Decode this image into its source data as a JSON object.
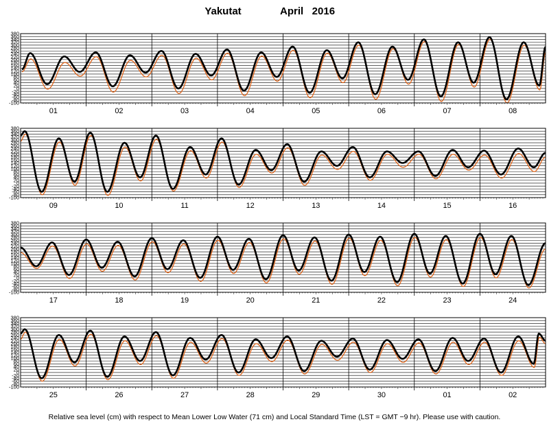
{
  "chart_data": {
    "type": "line",
    "title": {
      "station": "Yakutat",
      "month_year": "April   2016"
    },
    "ylim": [
      -100,
      380
    ],
    "y_ticks": [
      380,
      360,
      340,
      320,
      300,
      280,
      260,
      240,
      220,
      200,
      180,
      160,
      140,
      120,
      100,
      80,
      60,
      40,
      20,
      0,
      -20,
      -40,
      -60,
      -80,
      -100
    ],
    "grid": true,
    "series": [
      {
        "key": "black",
        "color": "#000000"
      },
      {
        "key": "orange",
        "color": "#e0661c"
      }
    ],
    "panels": [
      {
        "day_labels": [
          "01",
          "02",
          "03",
          "04",
          "05",
          "06",
          "07",
          "08"
        ],
        "high_low_black": [
          [
            0.5,
            132
          ],
          [
            3.5,
            245
          ],
          [
            9.7,
            30
          ],
          [
            16.0,
            222
          ],
          [
            21.6,
            115
          ],
          [
            27.5,
            250
          ],
          [
            33.7,
            15
          ],
          [
            40.0,
            230
          ],
          [
            45.7,
            110
          ],
          [
            51.5,
            260
          ],
          [
            57.7,
            0
          ],
          [
            64.0,
            240
          ],
          [
            69.7,
            90
          ],
          [
            75.5,
            270
          ],
          [
            81.7,
            -15
          ],
          [
            88.0,
            250
          ],
          [
            93.7,
            80
          ],
          [
            99.5,
            290
          ],
          [
            105.7,
            -30
          ],
          [
            112.0,
            265
          ],
          [
            117.7,
            70
          ],
          [
            123.5,
            320
          ],
          [
            129.7,
            -40
          ],
          [
            136.0,
            290
          ],
          [
            141.7,
            60
          ],
          [
            147.5,
            340
          ],
          [
            153.7,
            -55
          ],
          [
            160.0,
            320
          ],
          [
            165.7,
            40
          ],
          [
            171.5,
            355
          ],
          [
            177.7,
            -75
          ],
          [
            184.0,
            320
          ],
          [
            189.7,
            20
          ],
          [
            192.0,
            290
          ]
        ],
        "high_low_orange": [
          [
            0.5,
            115
          ],
          [
            3.7,
            205
          ],
          [
            9.9,
            -5
          ],
          [
            16.2,
            180
          ],
          [
            21.8,
            85
          ],
          [
            27.7,
            220
          ],
          [
            33.9,
            -25
          ],
          [
            40.2,
            195
          ],
          [
            45.9,
            80
          ],
          [
            51.7,
            230
          ],
          [
            57.9,
            -35
          ],
          [
            64.2,
            210
          ],
          [
            69.9,
            60
          ],
          [
            75.7,
            245
          ],
          [
            81.9,
            -50
          ],
          [
            88.2,
            225
          ],
          [
            93.9,
            50
          ],
          [
            99.7,
            265
          ],
          [
            105.9,
            -65
          ],
          [
            112.2,
            245
          ],
          [
            117.9,
            40
          ],
          [
            123.7,
            300
          ],
          [
            129.9,
            -75
          ],
          [
            136.2,
            275
          ],
          [
            141.9,
            30
          ],
          [
            147.7,
            325
          ],
          [
            153.9,
            -90
          ],
          [
            160.2,
            305
          ],
          [
            165.9,
            10
          ],
          [
            171.7,
            340
          ],
          [
            177.9,
            -100
          ],
          [
            184.2,
            300
          ],
          [
            189.9,
            -10
          ],
          [
            192.0,
            250
          ]
        ]
      },
      {
        "day_labels": [
          "09",
          "10",
          "11",
          "12",
          "13",
          "14",
          "15",
          "16"
        ],
        "high_low_black": [
          [
            0.0,
            330
          ],
          [
            1.5,
            360
          ],
          [
            7.7,
            -60
          ],
          [
            14.0,
            310
          ],
          [
            19.7,
            10
          ],
          [
            25.5,
            350
          ],
          [
            31.7,
            -60
          ],
          [
            38.0,
            280
          ],
          [
            43.7,
            40
          ],
          [
            49.5,
            330
          ],
          [
            55.7,
            -40
          ],
          [
            62.0,
            250
          ],
          [
            67.7,
            60
          ],
          [
            73.5,
            310
          ],
          [
            79.7,
            -10
          ],
          [
            86.0,
            230
          ],
          [
            91.7,
            90
          ],
          [
            97.5,
            270
          ],
          [
            103.7,
            10
          ],
          [
            110.0,
            220
          ],
          [
            115.7,
            120
          ],
          [
            121.5,
            250
          ],
          [
            127.7,
            40
          ],
          [
            134.0,
            220
          ],
          [
            139.7,
            140
          ],
          [
            145.5,
            220
          ],
          [
            151.7,
            50
          ],
          [
            158.0,
            230
          ],
          [
            163.7,
            110
          ],
          [
            169.5,
            225
          ],
          [
            175.7,
            60
          ],
          [
            182.0,
            240
          ],
          [
            187.7,
            110
          ],
          [
            192.0,
            210
          ]
        ],
        "high_low_orange": [
          [
            0.0,
            290
          ],
          [
            1.7,
            340
          ],
          [
            7.9,
            -80
          ],
          [
            14.2,
            285
          ],
          [
            19.9,
            -15
          ],
          [
            25.7,
            330
          ],
          [
            31.9,
            -85
          ],
          [
            38.2,
            250
          ],
          [
            43.9,
            15
          ],
          [
            49.7,
            305
          ],
          [
            55.9,
            -55
          ],
          [
            62.2,
            225
          ],
          [
            67.9,
            35
          ],
          [
            73.7,
            285
          ],
          [
            79.9,
            -30
          ],
          [
            86.2,
            200
          ],
          [
            91.9,
            70
          ],
          [
            97.7,
            245
          ],
          [
            103.9,
            -15
          ],
          [
            110.2,
            195
          ],
          [
            115.9,
            95
          ],
          [
            121.7,
            220
          ],
          [
            127.9,
            20
          ],
          [
            134.2,
            200
          ],
          [
            139.9,
            110
          ],
          [
            145.7,
            200
          ],
          [
            151.9,
            30
          ],
          [
            158.2,
            200
          ],
          [
            163.9,
            90
          ],
          [
            169.7,
            195
          ],
          [
            175.9,
            35
          ],
          [
            182.2,
            205
          ],
          [
            187.9,
            80
          ],
          [
            192.0,
            180
          ]
        ]
      },
      {
        "day_labels": [
          "17",
          "18",
          "19",
          "20",
          "21",
          "22",
          "23",
          "24"
        ],
        "high_low_black": [
          [
            0.0,
            210
          ],
          [
            5.7,
            80
          ],
          [
            11.5,
            245
          ],
          [
            17.7,
            20
          ],
          [
            24.0,
            265
          ],
          [
            29.7,
            70
          ],
          [
            35.5,
            250
          ],
          [
            41.7,
            10
          ],
          [
            48.0,
            275
          ],
          [
            53.7,
            60
          ],
          [
            59.5,
            260
          ],
          [
            65.7,
            0
          ],
          [
            72.0,
            285
          ],
          [
            77.7,
            55
          ],
          [
            83.5,
            270
          ],
          [
            89.7,
            -10
          ],
          [
            96.0,
            295
          ],
          [
            101.7,
            50
          ],
          [
            107.5,
            280
          ],
          [
            113.7,
            -20
          ],
          [
            120.0,
            300
          ],
          [
            125.7,
            40
          ],
          [
            131.5,
            285
          ],
          [
            137.7,
            -30
          ],
          [
            144.0,
            305
          ],
          [
            149.7,
            30
          ],
          [
            155.5,
            290
          ],
          [
            161.7,
            -40
          ],
          [
            168.0,
            305
          ],
          [
            173.7,
            25
          ],
          [
            179.5,
            290
          ],
          [
            185.7,
            -50
          ],
          [
            192.0,
            240
          ]
        ],
        "high_low_orange": [
          [
            0.0,
            175
          ],
          [
            5.9,
            65
          ],
          [
            11.7,
            220
          ],
          [
            17.9,
            -5
          ],
          [
            24.2,
            235
          ],
          [
            29.9,
            45
          ],
          [
            35.7,
            225
          ],
          [
            41.9,
            -15
          ],
          [
            48.2,
            250
          ],
          [
            53.9,
            35
          ],
          [
            59.7,
            235
          ],
          [
            65.9,
            -25
          ],
          [
            72.2,
            260
          ],
          [
            77.9,
            30
          ],
          [
            83.7,
            245
          ],
          [
            89.9,
            -35
          ],
          [
            96.2,
            270
          ],
          [
            101.9,
            25
          ],
          [
            107.7,
            255
          ],
          [
            113.9,
            -45
          ],
          [
            120.2,
            275
          ],
          [
            125.9,
            15
          ],
          [
            131.7,
            260
          ],
          [
            137.9,
            -55
          ],
          [
            144.2,
            280
          ],
          [
            149.9,
            5
          ],
          [
            155.7,
            265
          ],
          [
            161.9,
            -60
          ],
          [
            168.2,
            280
          ],
          [
            173.9,
            0
          ],
          [
            179.7,
            265
          ],
          [
            185.9,
            -70
          ],
          [
            192.0,
            200
          ]
        ]
      },
      {
        "day_labels": [
          "25",
          "26",
          "27",
          "28",
          "29",
          "30",
          "01",
          "02"
        ],
        "high_low_black": [
          [
            0.0,
            270
          ],
          [
            1.5,
            300
          ],
          [
            7.7,
            -40
          ],
          [
            14.0,
            260
          ],
          [
            19.7,
            70
          ],
          [
            25.5,
            290
          ],
          [
            31.7,
            -30
          ],
          [
            38.0,
            250
          ],
          [
            43.7,
            80
          ],
          [
            49.5,
            280
          ],
          [
            55.7,
            -20
          ],
          [
            62.0,
            240
          ],
          [
            67.7,
            90
          ],
          [
            73.5,
            260
          ],
          [
            79.7,
            0
          ],
          [
            86.0,
            230
          ],
          [
            91.7,
            100
          ],
          [
            97.5,
            250
          ],
          [
            103.7,
            10
          ],
          [
            110.0,
            220
          ],
          [
            115.7,
            110
          ],
          [
            121.5,
            235
          ],
          [
            127.7,
            20
          ],
          [
            134.0,
            225
          ],
          [
            139.7,
            95
          ],
          [
            145.5,
            230
          ],
          [
            151.7,
            10
          ],
          [
            158.0,
            240
          ],
          [
            163.7,
            80
          ],
          [
            169.5,
            235
          ],
          [
            175.7,
            0
          ],
          [
            182.0,
            250
          ],
          [
            187.7,
            60
          ],
          [
            189.5,
            270
          ],
          [
            192.0,
            220
          ]
        ],
        "high_low_orange": [
          [
            0.0,
            230
          ],
          [
            1.7,
            280
          ],
          [
            7.9,
            -60
          ],
          [
            14.2,
            230
          ],
          [
            19.9,
            45
          ],
          [
            25.7,
            265
          ],
          [
            31.9,
            -50
          ],
          [
            38.2,
            220
          ],
          [
            43.9,
            55
          ],
          [
            49.7,
            255
          ],
          [
            55.9,
            -40
          ],
          [
            62.2,
            210
          ],
          [
            67.9,
            65
          ],
          [
            73.7,
            235
          ],
          [
            79.9,
            -20
          ],
          [
            86.2,
            200
          ],
          [
            91.9,
            75
          ],
          [
            97.7,
            225
          ],
          [
            103.9,
            -10
          ],
          [
            110.2,
            195
          ],
          [
            115.9,
            85
          ],
          [
            121.7,
            210
          ],
          [
            127.9,
            0
          ],
          [
            134.2,
            200
          ],
          [
            139.9,
            70
          ],
          [
            145.7,
            205
          ],
          [
            151.9,
            -10
          ],
          [
            158.2,
            210
          ],
          [
            163.9,
            55
          ],
          [
            169.7,
            210
          ],
          [
            175.9,
            -20
          ],
          [
            182.2,
            220
          ],
          [
            187.9,
            35
          ],
          [
            189.7,
            245
          ],
          [
            192.0,
            200
          ]
        ]
      }
    ],
    "footnote": "Relative sea level (cm) with respect to Mean Lower Low Water (71 cm) and Local Standard Time (LST = GMT −9 hr). Please use with caution."
  }
}
